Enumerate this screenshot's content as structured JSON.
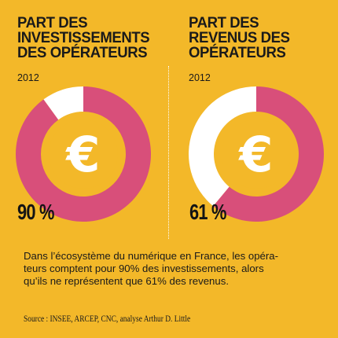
{
  "colors": {
    "background": "#f3b829",
    "share": "#d84f7a",
    "remainder": "#ffffff",
    "center": "#f3b829",
    "euro_symbol": "#ffffff"
  },
  "chart_data": [
    {
      "type": "pie",
      "title": "PART DES INVESTISSEMENTS DES OPÉRATEURS",
      "subtitle": "2012",
      "values": [
        90,
        10
      ],
      "value_label": "90 %",
      "center_icon": "euro-icon"
    },
    {
      "type": "pie",
      "title": "PART DES REVENUS DES OPÉRATEURS",
      "subtitle": "2012",
      "values": [
        61,
        39
      ],
      "value_label": "61 %",
      "center_icon": "euro-icon"
    }
  ],
  "icon_glyph": "€",
  "description": "Dans l’écosystème du numérique en France, les opéra-\nteurs comptent pour 90% des investissements, alors\nqu’ils ne représentent que 61% des revenus.",
  "source": "Source : INSEE, ARCEP, CNC, analyse Arthur D. Little"
}
